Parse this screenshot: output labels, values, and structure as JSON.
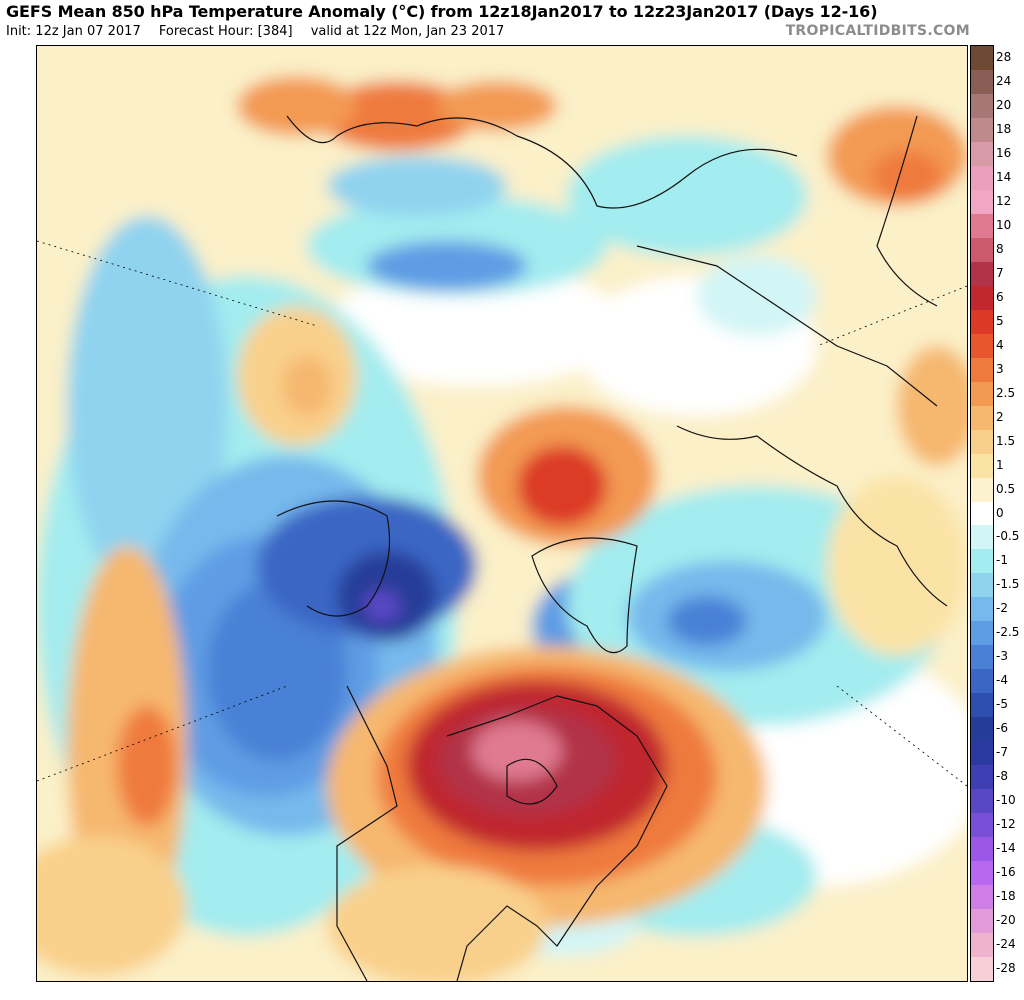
{
  "header": {
    "title": "GEFS Mean 850 hPa Temperature Anomaly (°C) from 12z18Jan2017 to 12z23Jan2017 (Days 12-16)",
    "init": "Init: 12z Jan 07 2017",
    "forecast_hour": "Forecast Hour: [384]",
    "valid": "valid at 12z Mon, Jan 23 2017",
    "brand": "TROPICALTIDBITS.COM"
  },
  "colorbar": {
    "labels": [
      "28",
      "24",
      "20",
      "18",
      "16",
      "14",
      "12",
      "10",
      "8",
      "7",
      "6",
      "5",
      "4",
      "3",
      "2.5",
      "2",
      "1.5",
      "1",
      "0.5",
      "0",
      "-0.5",
      "-1",
      "-1.5",
      "-2",
      "-2.5",
      "-3",
      "-4",
      "-5",
      "-6",
      "-7",
      "-8",
      "-10",
      "-12",
      "-14",
      "-16",
      "-18",
      "-20",
      "-24",
      "-28"
    ],
    "colors": [
      "#6e4a34",
      "#8a5e55",
      "#a77775",
      "#bf8a8c",
      "#d79aa6",
      "#ec9fbd",
      "#f2a6c3",
      "#e07a90",
      "#cc5a6c",
      "#b23347",
      "#c0272e",
      "#dc3a26",
      "#e8562e",
      "#ef7a3d",
      "#f39a52",
      "#f6b76e",
      "#f9d08b",
      "#fbe3a6",
      "#fdf2cf",
      "#ffffff",
      "#d2f5f6",
      "#a3ecef",
      "#8fd3ef",
      "#76b9ec",
      "#5e9ce4",
      "#4a81d6",
      "#3b66c4",
      "#2f4fae",
      "#253d99",
      "#2a3aa0",
      "#3f3fb4",
      "#5a47c6",
      "#7a4fd8",
      "#9b57e6",
      "#b868ee",
      "#cf7ee8",
      "#e39ad9",
      "#efb3d0",
      "#f7cfd6"
    ]
  }
}
